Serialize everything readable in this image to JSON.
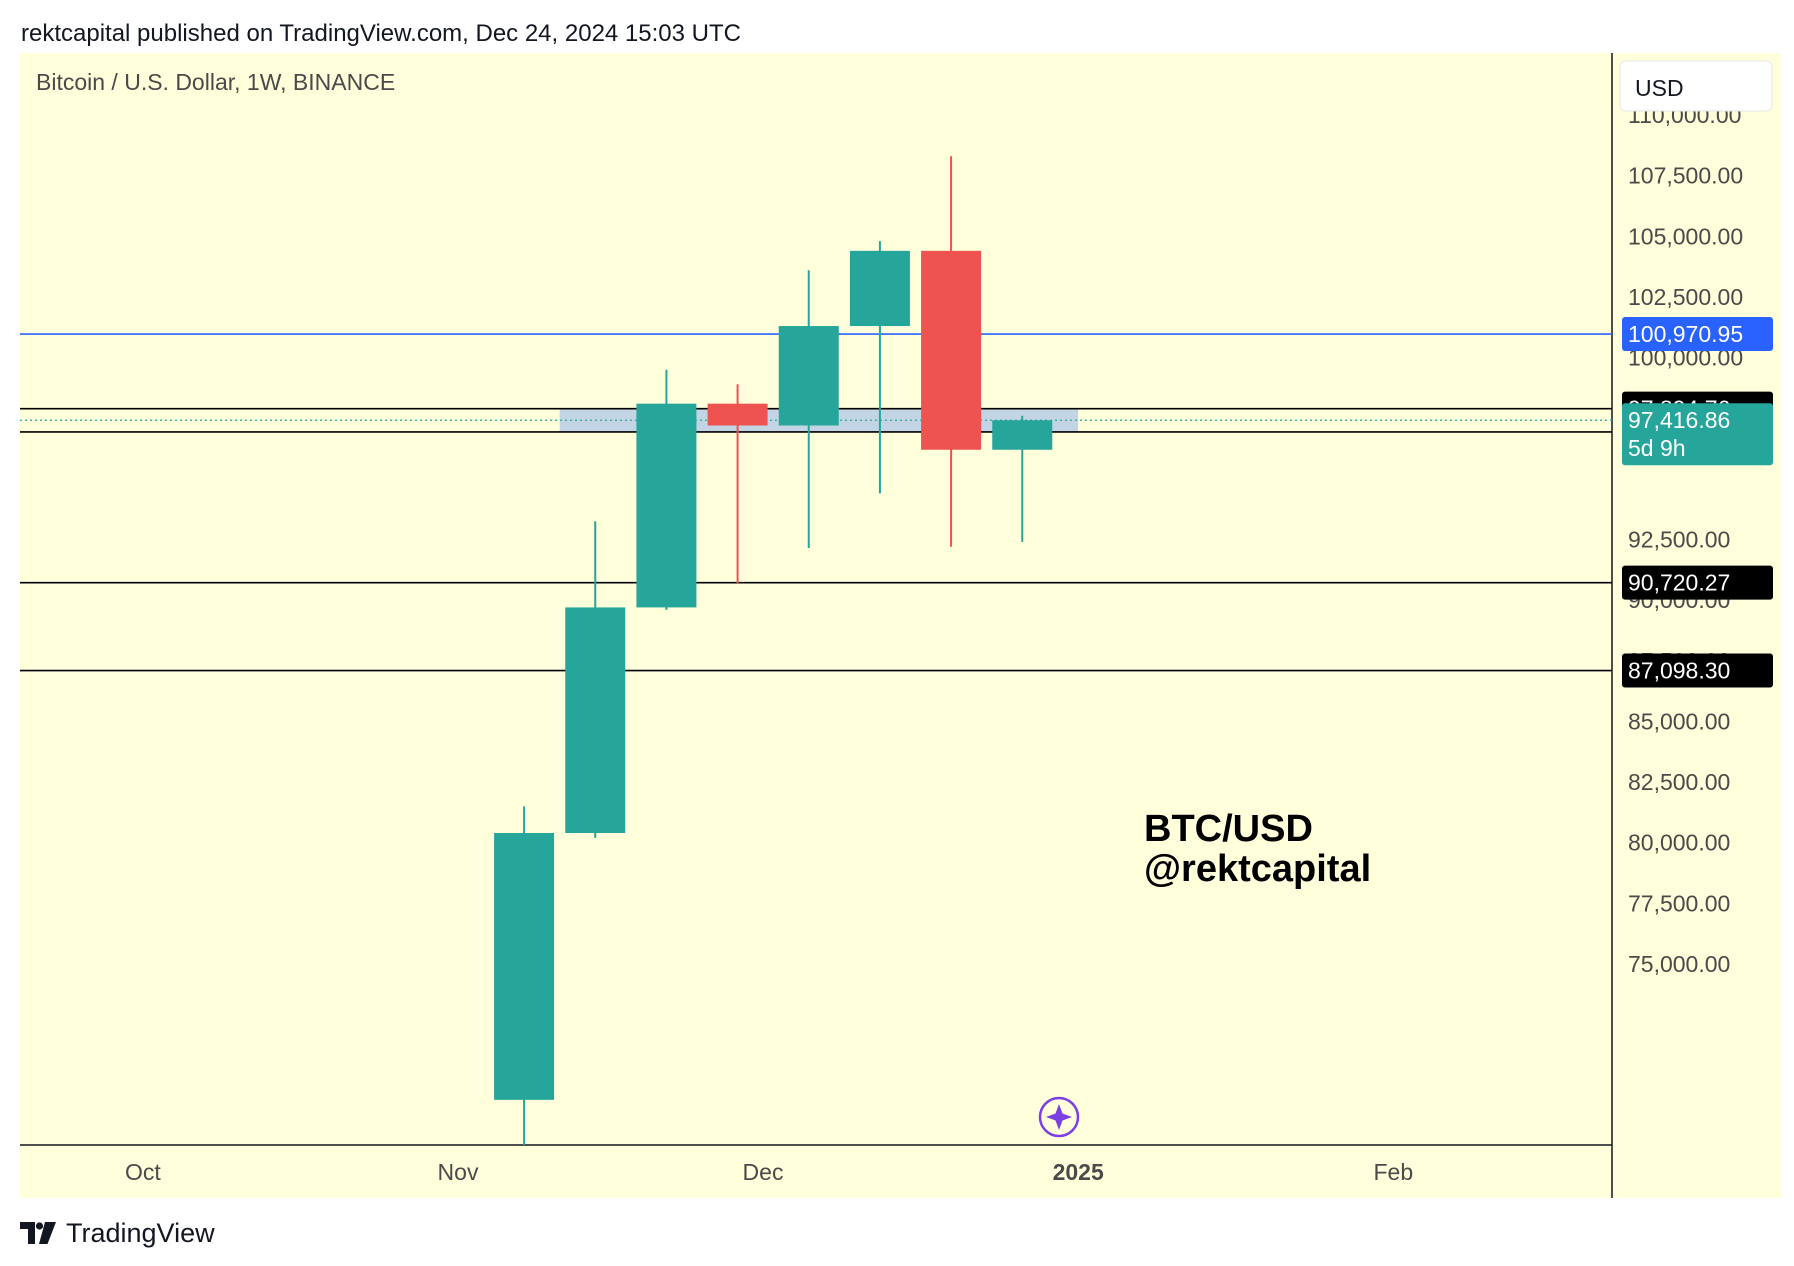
{
  "header": {
    "published_text": "rektcapital published on TradingView.com, Dec 24, 2024 15:03 UTC"
  },
  "chart_title": "Bitcoin / U.S. Dollar, 1W, BINANCE",
  "currency_button": "USD",
  "watermark": {
    "line1": "BTC/USD",
    "line2": "@rektcapital"
  },
  "footer": {
    "brand": "TradingView"
  },
  "colors": {
    "background": "#ffffdc",
    "up": "#26a69a",
    "down": "#ef5350",
    "blue_line": "#2962ff",
    "zone": "#b8cde6",
    "label_black": "#000000",
    "axis_text": "#4a4a4a",
    "cursor_icon": "#7b3fe4"
  },
  "chart_data": {
    "type": "candlestick",
    "title": "Bitcoin / U.S. Dollar, 1W, BINANCE",
    "ylim": [
      73000,
      112000
    ],
    "y_ticks": [
      75000,
      77500,
      80000,
      82500,
      85000,
      87500,
      90000,
      92500,
      100000,
      102500,
      105000,
      107500,
      110000
    ],
    "x_axis_labels": [
      {
        "date": "2024-10-01",
        "label": "Oct",
        "bold": false
      },
      {
        "date": "2024-11-01",
        "label": "Nov",
        "bold": false
      },
      {
        "date": "2024-12-01",
        "label": "Dec",
        "bold": false
      },
      {
        "date": "2025-01-01",
        "label": "2025",
        "bold": true
      },
      {
        "date": "2025-02-01",
        "label": "Feb",
        "bold": false
      }
    ],
    "candles": [
      {
        "date": "2024-11-04",
        "open": 69400,
        "high": 81500,
        "low": 66800,
        "close": 80400
      },
      {
        "date": "2024-11-11",
        "open": 80400,
        "high": 93250,
        "low": 80200,
        "close": 89700
      },
      {
        "date": "2024-11-18",
        "open": 89700,
        "high": 99500,
        "low": 89600,
        "close": 98100
      },
      {
        "date": "2024-11-25",
        "open": 98100,
        "high": 98900,
        "low": 90700,
        "close": 97200
      },
      {
        "date": "2024-12-02",
        "open": 97200,
        "high": 103600,
        "low": 92150,
        "close": 101300
      },
      {
        "date": "2024-12-09",
        "open": 101300,
        "high": 104800,
        "low": 94400,
        "close": 104400
      },
      {
        "date": "2024-12-16",
        "open": 104400,
        "high": 108300,
        "low": 92200,
        "close": 96200
      },
      {
        "date": "2024-12-23",
        "open": 96200,
        "high": 97600,
        "low": 92400,
        "close": 97416.86
      }
    ],
    "horizontal_lines": [
      {
        "value": 100970.95,
        "label": "100,970.95",
        "style": "blue"
      },
      {
        "value": 97894.76,
        "label": "97,894.76",
        "style": "black"
      },
      {
        "value": 96935.4,
        "label": "96,935.40",
        "style": "black"
      },
      {
        "value": 90720.27,
        "label": "90,720.27",
        "style": "black"
      },
      {
        "value": 87098.3,
        "label": "87,098.30",
        "style": "black"
      }
    ],
    "zone": {
      "from_date": "2024-11-11",
      "to_date": "2025-01-01",
      "low": 96935.4,
      "high": 97894.76
    },
    "current_price": {
      "value": 97416.86,
      "label": "97,416.86",
      "countdown": "5d 9h"
    }
  }
}
